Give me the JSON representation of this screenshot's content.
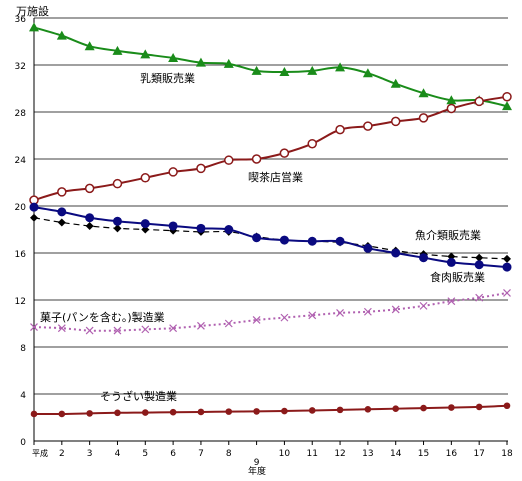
{
  "chart_data": {
    "type": "line",
    "y_unit": "万施設",
    "xlabel": "年度",
    "x_ticks": [
      "平成",
      "2",
      "3",
      "4",
      "5",
      "6",
      "7",
      "8",
      "9",
      "10",
      "11",
      "12",
      "13",
      "14",
      "15",
      "16",
      "17",
      "18"
    ],
    "y_ticks": [
      "0",
      "4",
      "8",
      "12",
      "16",
      "20",
      "24",
      "28",
      "32",
      "36"
    ],
    "ylim": [
      0,
      36
    ],
    "grid": "horizontal",
    "legend": "inline labels",
    "series": [
      {
        "name": "乳類販売業",
        "color": "#1a8c1a",
        "marker": "triangle",
        "line": "solid",
        "values": [
          35.2,
          34.5,
          33.6,
          33.2,
          32.9,
          32.6,
          32.2,
          32.1,
          31.5,
          31.4,
          31.5,
          31.8,
          31.3,
          30.4,
          29.6,
          29.0,
          29.0,
          28.5
        ]
      },
      {
        "name": "喫茶店営業",
        "color": "#8b1a1a",
        "marker": "circle-open",
        "line": "solid",
        "values": [
          20.5,
          21.2,
          21.5,
          21.9,
          22.4,
          22.9,
          23.2,
          23.9,
          24.0,
          24.5,
          25.3,
          26.5,
          26.8,
          27.2,
          27.5,
          28.3,
          28.9,
          29.3
        ]
      },
      {
        "name": "魚介類販売業",
        "color": "#000000",
        "marker": "diamond",
        "line": "dashed",
        "values": [
          19.0,
          18.6,
          18.3,
          18.1,
          18.0,
          17.9,
          17.8,
          17.8,
          17.4,
          17.1,
          17.0,
          16.9,
          16.6,
          16.2,
          15.9,
          15.7,
          15.6,
          15.5
        ]
      },
      {
        "name": "食肉販売業",
        "color": "#0a0a80",
        "marker": "circle",
        "line": "solid",
        "values": [
          19.9,
          19.5,
          19.0,
          18.7,
          18.5,
          18.3,
          18.1,
          18.0,
          17.3,
          17.1,
          17.0,
          17.0,
          16.4,
          16.0,
          15.6,
          15.2,
          15.0,
          14.8
        ]
      },
      {
        "name": "菓子(パンを含む。)製造業",
        "color": "#b060b0",
        "marker": "x",
        "line": "dotted",
        "values": [
          9.7,
          9.6,
          9.4,
          9.4,
          9.5,
          9.6,
          9.8,
          10.0,
          10.3,
          10.5,
          10.7,
          10.9,
          11.0,
          11.2,
          11.5,
          11.9,
          12.2,
          12.6
        ]
      },
      {
        "name": "そうざい製造業",
        "color": "#8b1a1a",
        "marker": "circle",
        "line": "solid",
        "values": [
          2.3,
          2.3,
          2.35,
          2.4,
          2.42,
          2.45,
          2.47,
          2.5,
          2.52,
          2.55,
          2.6,
          2.65,
          2.7,
          2.75,
          2.8,
          2.85,
          2.9,
          3.0
        ]
      }
    ]
  }
}
